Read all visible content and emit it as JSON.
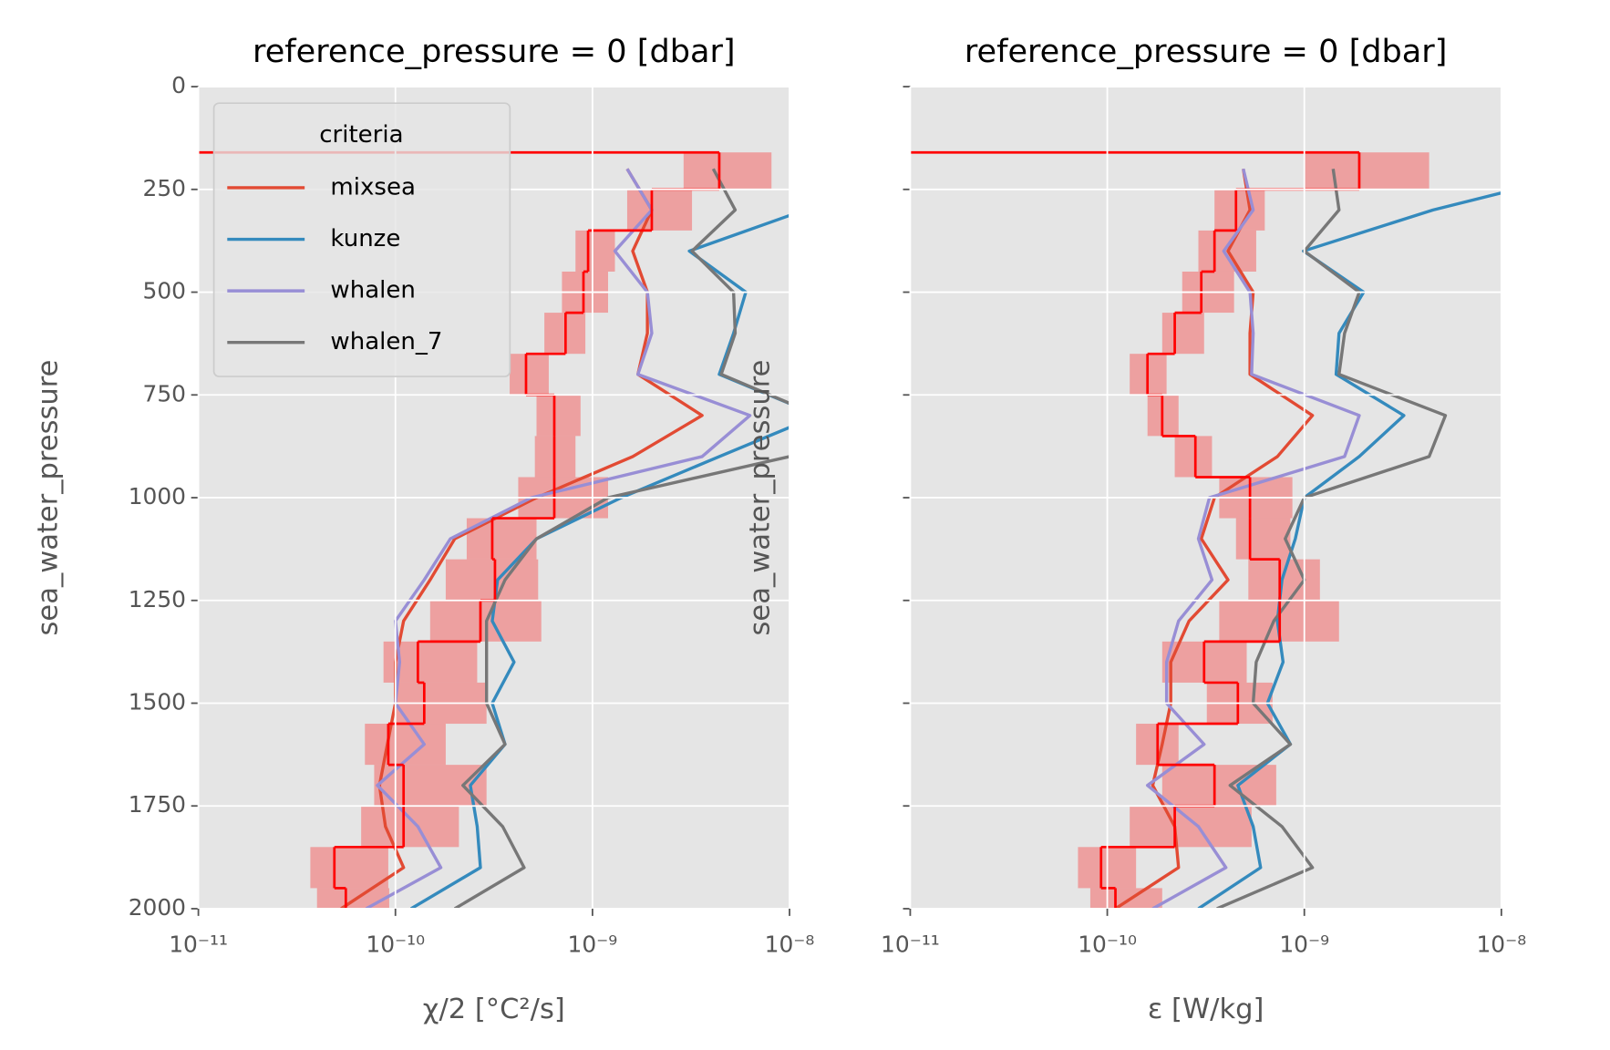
{
  "chart_data": [
    {
      "type": "line",
      "title": "reference_pressure = 0 [dbar]",
      "xlabel": "χ/2 [°C²/s]",
      "ylabel": "sea_water_pressure",
      "xscale": "log",
      "xlim": [
        1e-11,
        1e-08
      ],
      "xticks": [
        {
          "value": 1e-11,
          "label": "10⁻¹¹"
        },
        {
          "value": 1e-10,
          "label": "10⁻¹⁰"
        },
        {
          "value": 1e-09,
          "label": "10⁻⁹"
        },
        {
          "value": 1e-08,
          "label": "10⁻⁸"
        }
      ],
      "ylim": [
        2000,
        0
      ],
      "yticks": [
        0,
        250,
        500,
        750,
        1000,
        1250,
        1500,
        1750,
        2000
      ],
      "ytick_labels": true,
      "grid": true,
      "legend": {
        "title": "criteria",
        "loc": "upper left"
      },
      "y": [
        200,
        300,
        400,
        500,
        600,
        700,
        800,
        900,
        1000,
        1100,
        1200,
        1300,
        1400,
        1500,
        1600,
        1700,
        1800,
        1900,
        2000
      ],
      "series": [
        {
          "name": "mixsea",
          "color": "#E24A33",
          "values": [
            1.5e-09,
            2e-09,
            1.6e-09,
            1.9e-09,
            1.9e-09,
            1.7e-09,
            3.6e-09,
            1.6e-09,
            5.2e-10,
            2e-10,
            1.5e-10,
            1.1e-10,
            1e-10,
            1e-10,
            9.1e-11,
            8.3e-11,
            8.9e-11,
            1.1e-10,
            5.3e-11
          ]
        },
        {
          "name": "kunze",
          "color": "#348ABD",
          "values": [
            1.5e-08,
            1.2e-08,
            3.1e-09,
            6e-09,
            5.2e-09,
            4.4e-09,
            1.4e-08,
            4.4e-09,
            1.4e-09,
            5.2e-10,
            3.3e-10,
            3.1e-10,
            4e-10,
            3.1e-10,
            3.6e-10,
            2.4e-10,
            2.6e-10,
            2.7e-10,
            1.2e-10
          ]
        },
        {
          "name": "whalen",
          "color": "#988ED5",
          "values": [
            1.5e-09,
            2e-09,
            1.3e-09,
            1.9e-09,
            2e-09,
            1.7e-09,
            6.3e-09,
            3.6e-09,
            4.9e-10,
            1.9e-10,
            1.4e-10,
            1e-10,
            1.05e-10,
            1e-10,
            1.4e-10,
            8.1e-11,
            1.3e-10,
            1.7e-10,
            7.1e-11
          ]
        },
        {
          "name": "whalen_7",
          "color": "#777777",
          "values": [
            4.1e-09,
            5.3e-09,
            3.2e-09,
            5.2e-09,
            5.3e-09,
            4.5e-09,
            1.4e-08,
            1e-08,
            1.2e-09,
            5.2e-10,
            3.6e-10,
            2.9e-10,
            2.9e-10,
            2.9e-10,
            3.6e-10,
            2.2e-10,
            3.5e-10,
            4.5e-10,
            2e-10
          ]
        }
      ],
      "step": {
        "color": "#FF0000",
        "edges": [
          160,
          250,
          350,
          450,
          550,
          650,
          750,
          850,
          950,
          1050,
          1150,
          1250,
          1350,
          1450,
          1550,
          1650,
          1750,
          1850,
          1950,
          2050
        ],
        "values": [
          4.4e-09,
          2e-09,
          9.5e-10,
          9e-10,
          7.3e-10,
          4.6e-10,
          6.4e-10,
          6.4e-10,
          6.4e-10,
          3.1e-10,
          3.2e-10,
          2.7e-10,
          1.3e-10,
          1.4e-10,
          9.2e-11,
          1.1e-10,
          1.1e-10,
          4.9e-11,
          5.6e-11
        ]
      },
      "ranges": {
        "color": "#FF0000",
        "alpha": 0.3,
        "low": [
          2.9e-09,
          1.5e-09,
          8.2e-10,
          7e-10,
          5.7e-10,
          3.8e-10,
          5.2e-10,
          5.1e-10,
          4.2e-10,
          2.3e-10,
          1.8e-10,
          1.5e-10,
          8.7e-11,
          1e-10,
          7e-11,
          7.8e-11,
          6.7e-11,
          3.7e-11,
          4e-11
        ],
        "high": [
          8.1e-09,
          3.2e-09,
          1.3e-09,
          1.2e-09,
          9.2e-10,
          6e-10,
          8.7e-10,
          8.2e-10,
          1.2e-09,
          5.2e-10,
          5.3e-10,
          5.5e-10,
          2.6e-10,
          2.9e-10,
          1.8e-10,
          2.9e-10,
          2.1e-10,
          9.2e-11,
          9.3e-11
        ]
      }
    },
    {
      "type": "line",
      "title": "reference_pressure = 0 [dbar]",
      "xlabel": "ε [W/kg]",
      "ylabel": "sea_water_pressure",
      "xscale": "log",
      "xlim": [
        1e-11,
        1e-08
      ],
      "xticks": [
        {
          "value": 1e-11,
          "label": "10⁻¹¹"
        },
        {
          "value": 1e-10,
          "label": "10⁻¹⁰"
        },
        {
          "value": 1e-09,
          "label": "10⁻⁹"
        },
        {
          "value": 1e-08,
          "label": "10⁻⁸"
        }
      ],
      "ylim": [
        2000,
        0
      ],
      "yticks": [
        0,
        250,
        500,
        750,
        1000,
        1250,
        1500,
        1750,
        2000
      ],
      "ytick_labels": false,
      "grid": true,
      "y": [
        200,
        300,
        400,
        500,
        600,
        700,
        800,
        900,
        1000,
        1100,
        1200,
        1300,
        1400,
        1500,
        1600,
        1700,
        1800,
        1900,
        2000
      ],
      "series": [
        {
          "name": "mixsea",
          "color": "#E24A33",
          "values": [
            4.9e-10,
            5.3e-10,
            4.1e-10,
            5.5e-10,
            5.3e-10,
            5.3e-10,
            1.1e-09,
            7.3e-10,
            3.5e-10,
            3e-10,
            4.1e-10,
            2.6e-10,
            2.1e-10,
            2.1e-10,
            1.9e-10,
            1.7e-10,
            2.2e-10,
            2.3e-10,
            1.1e-10
          ]
        },
        {
          "name": "kunze",
          "color": "#348ABD",
          "values": [
            3.1e-08,
            4.5e-09,
            9.9e-10,
            2e-09,
            1.5e-09,
            1.45e-09,
            3.2e-09,
            1.9e-09,
            1e-09,
            9e-10,
            7.7e-10,
            7.3e-10,
            7.8e-10,
            6.5e-10,
            8.5e-10,
            4.6e-10,
            5.5e-10,
            6e-10,
            2.9e-10
          ]
        },
        {
          "name": "whalen",
          "color": "#988ED5",
          "values": [
            4.9e-10,
            5.5e-10,
            3.9e-10,
            5.3e-10,
            5.5e-10,
            5.4e-10,
            1.9e-09,
            1.6e-09,
            3.3e-10,
            2.9e-10,
            3.4e-10,
            2.3e-10,
            2e-10,
            2e-10,
            3.1e-10,
            1.6e-10,
            2.9e-10,
            4e-10,
            1.7e-10
          ]
        },
        {
          "name": "whalen_7",
          "color": "#777777",
          "values": [
            1.4e-09,
            1.5e-09,
            1e-09,
            1.9e-09,
            1.6e-09,
            1.5e-09,
            5.2e-09,
            4.3e-09,
            1e-09,
            8e-10,
            1e-09,
            7e-10,
            5.7e-10,
            5.5e-10,
            8.5e-10,
            4.2e-10,
            7.7e-10,
            1.1e-09,
            3.6e-10
          ]
        }
      ],
      "step": {
        "color": "#FF0000",
        "edges": [
          160,
          250,
          350,
          450,
          550,
          650,
          750,
          850,
          950,
          1050,
          1150,
          1250,
          1350,
          1450,
          1550,
          1650,
          1750,
          1850,
          1950,
          2050
        ],
        "values": [
          1.9e-09,
          4.5e-10,
          3.5e-10,
          3e-10,
          2.2e-10,
          1.6e-10,
          1.9e-10,
          2.8e-10,
          5.3e-10,
          5.3e-10,
          7.5e-10,
          7.5e-10,
          3.1e-10,
          4.6e-10,
          1.8e-10,
          3.5e-10,
          2.2e-10,
          9.3e-11,
          1.1e-10
        ]
      },
      "ranges": {
        "color": "#FF0000",
        "alpha": 0.3,
        "low": [
          1e-09,
          3.5e-10,
          2.9e-10,
          2.4e-10,
          1.9e-10,
          1.3e-10,
          1.6e-10,
          2.2e-10,
          3.7e-10,
          4.5e-10,
          5.2e-10,
          3.7e-10,
          1.9e-10,
          3.2e-10,
          1.4e-10,
          1.9e-10,
          1.3e-10,
          7.1e-11,
          8.2e-11
        ],
        "high": [
          4.3e-09,
          6.3e-10,
          5.7e-10,
          4.4e-10,
          3.1e-10,
          2e-10,
          2.3e-10,
          3.4e-10,
          8.7e-10,
          8.5e-10,
          1.2e-09,
          1.5e-09,
          5.1e-10,
          6.9e-10,
          2.3e-10,
          7.2e-10,
          5.4e-10,
          1.4e-10,
          1.9e-10
        ]
      }
    }
  ]
}
